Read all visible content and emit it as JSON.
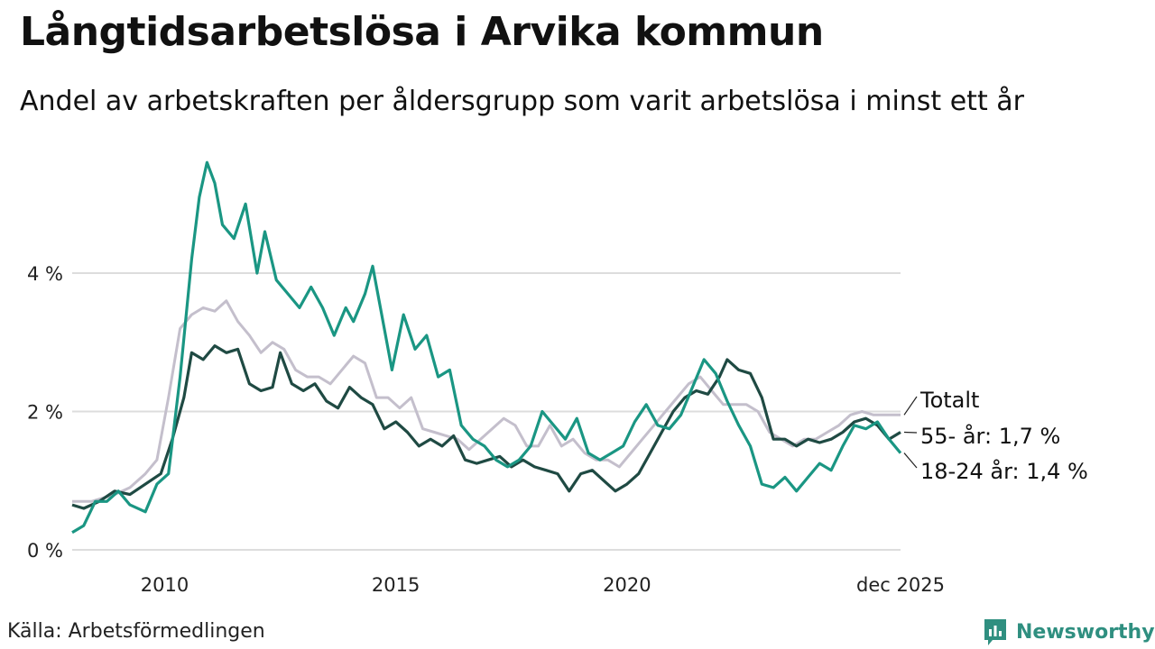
{
  "header": {
    "title": "Långtidsarbetslösa i Arvika kommun",
    "subtitle": "Andel av arbetskraften per åldersgrupp som varit arbetslösa i minst ett år"
  },
  "footer": {
    "source": "Källa: Arbetsförmedlingen",
    "brand": "Newsworthy"
  },
  "colors": {
    "total": "#c4bfcc",
    "older": "#1f4a43",
    "young": "#1a9683",
    "grid": "#dddddd"
  },
  "chart_data": {
    "type": "line",
    "y_unit": "%",
    "ylim": [
      0,
      6
    ],
    "xlim": [
      "2008-01",
      "2025-12"
    ],
    "y_ticks": [
      {
        "value": 0,
        "label": "0 %"
      },
      {
        "value": 2,
        "label": "2 %"
      },
      {
        "value": 4,
        "label": "4 %"
      }
    ],
    "x_ticks": [
      {
        "value": "2010-01",
        "label": "2010"
      },
      {
        "value": "2015-01",
        "label": "2015"
      },
      {
        "value": "2020-01",
        "label": "2020"
      },
      {
        "value": "2025-12",
        "label": "dec 2025"
      }
    ],
    "grid": true,
    "series": [
      {
        "name": "Totalt",
        "label": "Totalt",
        "key": "total",
        "points": [
          [
            "2008-01",
            0.7
          ],
          [
            "2008-06",
            0.7
          ],
          [
            "2008-12",
            0.8
          ],
          [
            "2009-04",
            0.9
          ],
          [
            "2009-08",
            1.1
          ],
          [
            "2009-11",
            1.3
          ],
          [
            "2010-02",
            2.2
          ],
          [
            "2010-05",
            3.2
          ],
          [
            "2010-08",
            3.4
          ],
          [
            "2010-11",
            3.5
          ],
          [
            "2011-02",
            3.45
          ],
          [
            "2011-05",
            3.6
          ],
          [
            "2011-08",
            3.3
          ],
          [
            "2011-11",
            3.1
          ],
          [
            "2012-02",
            2.85
          ],
          [
            "2012-05",
            3.0
          ],
          [
            "2012-08",
            2.9
          ],
          [
            "2012-11",
            2.6
          ],
          [
            "2013-02",
            2.5
          ],
          [
            "2013-05",
            2.5
          ],
          [
            "2013-08",
            2.4
          ],
          [
            "2013-11",
            2.6
          ],
          [
            "2014-02",
            2.8
          ],
          [
            "2014-05",
            2.7
          ],
          [
            "2014-08",
            2.2
          ],
          [
            "2014-11",
            2.2
          ],
          [
            "2015-02",
            2.05
          ],
          [
            "2015-05",
            2.2
          ],
          [
            "2015-08",
            1.75
          ],
          [
            "2015-11",
            1.7
          ],
          [
            "2016-02",
            1.65
          ],
          [
            "2016-05",
            1.6
          ],
          [
            "2016-08",
            1.45
          ],
          [
            "2016-11",
            1.6
          ],
          [
            "2017-02",
            1.75
          ],
          [
            "2017-05",
            1.9
          ],
          [
            "2017-08",
            1.8
          ],
          [
            "2017-11",
            1.5
          ],
          [
            "2018-02",
            1.5
          ],
          [
            "2018-05",
            1.8
          ],
          [
            "2018-08",
            1.5
          ],
          [
            "2018-11",
            1.6
          ],
          [
            "2019-02",
            1.4
          ],
          [
            "2019-05",
            1.3
          ],
          [
            "2019-08",
            1.3
          ],
          [
            "2019-11",
            1.2
          ],
          [
            "2020-02",
            1.4
          ],
          [
            "2020-05",
            1.6
          ],
          [
            "2020-08",
            1.8
          ],
          [
            "2020-11",
            2.0
          ],
          [
            "2021-02",
            2.2
          ],
          [
            "2021-05",
            2.4
          ],
          [
            "2021-08",
            2.5
          ],
          [
            "2021-11",
            2.3
          ],
          [
            "2022-02",
            2.1
          ],
          [
            "2022-05",
            2.1
          ],
          [
            "2022-08",
            2.1
          ],
          [
            "2022-11",
            2.0
          ],
          [
            "2023-02",
            1.7
          ],
          [
            "2023-05",
            1.6
          ],
          [
            "2023-08",
            1.5
          ],
          [
            "2023-11",
            1.6
          ],
          [
            "2024-02",
            1.6
          ],
          [
            "2024-05",
            1.7
          ],
          [
            "2024-08",
            1.8
          ],
          [
            "2024-11",
            1.95
          ],
          [
            "2025-02",
            2.0
          ],
          [
            "2025-05",
            1.95
          ],
          [
            "2025-08",
            1.95
          ],
          [
            "2025-12",
            1.95
          ]
        ]
      },
      {
        "name": "55- år",
        "label": "55- år: 1,7 %",
        "key": "older",
        "points": [
          [
            "2008-01",
            0.65
          ],
          [
            "2008-04",
            0.6
          ],
          [
            "2008-08",
            0.7
          ],
          [
            "2008-12",
            0.85
          ],
          [
            "2009-04",
            0.8
          ],
          [
            "2009-08",
            0.95
          ],
          [
            "2009-12",
            1.1
          ],
          [
            "2010-03",
            1.6
          ],
          [
            "2010-06",
            2.2
          ],
          [
            "2010-08",
            2.85
          ],
          [
            "2010-11",
            2.75
          ],
          [
            "2011-02",
            2.95
          ],
          [
            "2011-05",
            2.85
          ],
          [
            "2011-08",
            2.9
          ],
          [
            "2011-11",
            2.4
          ],
          [
            "2012-02",
            2.3
          ],
          [
            "2012-05",
            2.35
          ],
          [
            "2012-07",
            2.85
          ],
          [
            "2012-10",
            2.4
          ],
          [
            "2013-01",
            2.3
          ],
          [
            "2013-04",
            2.4
          ],
          [
            "2013-07",
            2.15
          ],
          [
            "2013-10",
            2.05
          ],
          [
            "2014-01",
            2.35
          ],
          [
            "2014-04",
            2.2
          ],
          [
            "2014-07",
            2.1
          ],
          [
            "2014-10",
            1.75
          ],
          [
            "2015-01",
            1.85
          ],
          [
            "2015-04",
            1.7
          ],
          [
            "2015-07",
            1.5
          ],
          [
            "2015-10",
            1.6
          ],
          [
            "2016-01",
            1.5
          ],
          [
            "2016-04",
            1.65
          ],
          [
            "2016-07",
            1.3
          ],
          [
            "2016-10",
            1.25
          ],
          [
            "2017-01",
            1.3
          ],
          [
            "2017-04",
            1.35
          ],
          [
            "2017-07",
            1.2
          ],
          [
            "2017-10",
            1.3
          ],
          [
            "2018-01",
            1.2
          ],
          [
            "2018-04",
            1.15
          ],
          [
            "2018-07",
            1.1
          ],
          [
            "2018-10",
            0.85
          ],
          [
            "2019-01",
            1.1
          ],
          [
            "2019-04",
            1.15
          ],
          [
            "2019-07",
            1.0
          ],
          [
            "2019-10",
            0.85
          ],
          [
            "2020-01",
            0.95
          ],
          [
            "2020-04",
            1.1
          ],
          [
            "2020-07",
            1.4
          ],
          [
            "2020-10",
            1.7
          ],
          [
            "2021-01",
            2.0
          ],
          [
            "2021-04",
            2.2
          ],
          [
            "2021-07",
            2.3
          ],
          [
            "2021-10",
            2.25
          ],
          [
            "2022-01",
            2.5
          ],
          [
            "2022-03",
            2.75
          ],
          [
            "2022-06",
            2.6
          ],
          [
            "2022-09",
            2.55
          ],
          [
            "2022-12",
            2.2
          ],
          [
            "2023-03",
            1.6
          ],
          [
            "2023-06",
            1.6
          ],
          [
            "2023-09",
            1.5
          ],
          [
            "2023-12",
            1.6
          ],
          [
            "2024-03",
            1.55
          ],
          [
            "2024-06",
            1.6
          ],
          [
            "2024-09",
            1.7
          ],
          [
            "2024-12",
            1.85
          ],
          [
            "2025-03",
            1.9
          ],
          [
            "2025-06",
            1.8
          ],
          [
            "2025-09",
            1.6
          ],
          [
            "2025-12",
            1.7
          ]
        ]
      },
      {
        "name": "18-24 år",
        "label": "18-24 år: 1,4 %",
        "key": "young",
        "points": [
          [
            "2008-01",
            0.25
          ],
          [
            "2008-04",
            0.35
          ],
          [
            "2008-07",
            0.7
          ],
          [
            "2008-10",
            0.7
          ],
          [
            "2009-01",
            0.85
          ],
          [
            "2009-04",
            0.65
          ],
          [
            "2009-08",
            0.55
          ],
          [
            "2009-11",
            0.95
          ],
          [
            "2010-02",
            1.1
          ],
          [
            "2010-05",
            2.5
          ],
          [
            "2010-08",
            4.2
          ],
          [
            "2010-10",
            5.1
          ],
          [
            "2010-12",
            5.6
          ],
          [
            "2011-02",
            5.3
          ],
          [
            "2011-04",
            4.7
          ],
          [
            "2011-07",
            4.5
          ],
          [
            "2011-10",
            5.0
          ],
          [
            "2012-01",
            4.0
          ],
          [
            "2012-03",
            4.6
          ],
          [
            "2012-06",
            3.9
          ],
          [
            "2012-09",
            3.7
          ],
          [
            "2012-12",
            3.5
          ],
          [
            "2013-03",
            3.8
          ],
          [
            "2013-06",
            3.5
          ],
          [
            "2013-09",
            3.1
          ],
          [
            "2013-12",
            3.5
          ],
          [
            "2014-02",
            3.3
          ],
          [
            "2014-05",
            3.7
          ],
          [
            "2014-07",
            4.1
          ],
          [
            "2014-09",
            3.5
          ],
          [
            "2014-12",
            2.6
          ],
          [
            "2015-03",
            3.4
          ],
          [
            "2015-06",
            2.9
          ],
          [
            "2015-09",
            3.1
          ],
          [
            "2015-12",
            2.5
          ],
          [
            "2016-03",
            2.6
          ],
          [
            "2016-06",
            1.8
          ],
          [
            "2016-09",
            1.6
          ],
          [
            "2016-12",
            1.5
          ],
          [
            "2017-03",
            1.3
          ],
          [
            "2017-06",
            1.2
          ],
          [
            "2017-09",
            1.3
          ],
          [
            "2017-12",
            1.5
          ],
          [
            "2018-03",
            2.0
          ],
          [
            "2018-06",
            1.8
          ],
          [
            "2018-09",
            1.6
          ],
          [
            "2018-12",
            1.9
          ],
          [
            "2019-03",
            1.4
          ],
          [
            "2019-06",
            1.3
          ],
          [
            "2019-09",
            1.4
          ],
          [
            "2019-12",
            1.5
          ],
          [
            "2020-03",
            1.85
          ],
          [
            "2020-06",
            2.1
          ],
          [
            "2020-09",
            1.8
          ],
          [
            "2020-12",
            1.75
          ],
          [
            "2021-03",
            1.95
          ],
          [
            "2021-06",
            2.35
          ],
          [
            "2021-09",
            2.75
          ],
          [
            "2021-12",
            2.55
          ],
          [
            "2022-03",
            2.15
          ],
          [
            "2022-06",
            1.8
          ],
          [
            "2022-09",
            1.5
          ],
          [
            "2022-12",
            0.95
          ],
          [
            "2023-03",
            0.9
          ],
          [
            "2023-06",
            1.05
          ],
          [
            "2023-09",
            0.85
          ],
          [
            "2023-12",
            1.05
          ],
          [
            "2024-03",
            1.25
          ],
          [
            "2024-06",
            1.15
          ],
          [
            "2024-09",
            1.5
          ],
          [
            "2024-12",
            1.8
          ],
          [
            "2025-03",
            1.75
          ],
          [
            "2025-06",
            1.85
          ],
          [
            "2025-09",
            1.6
          ],
          [
            "2025-12",
            1.4
          ]
        ]
      }
    ]
  }
}
